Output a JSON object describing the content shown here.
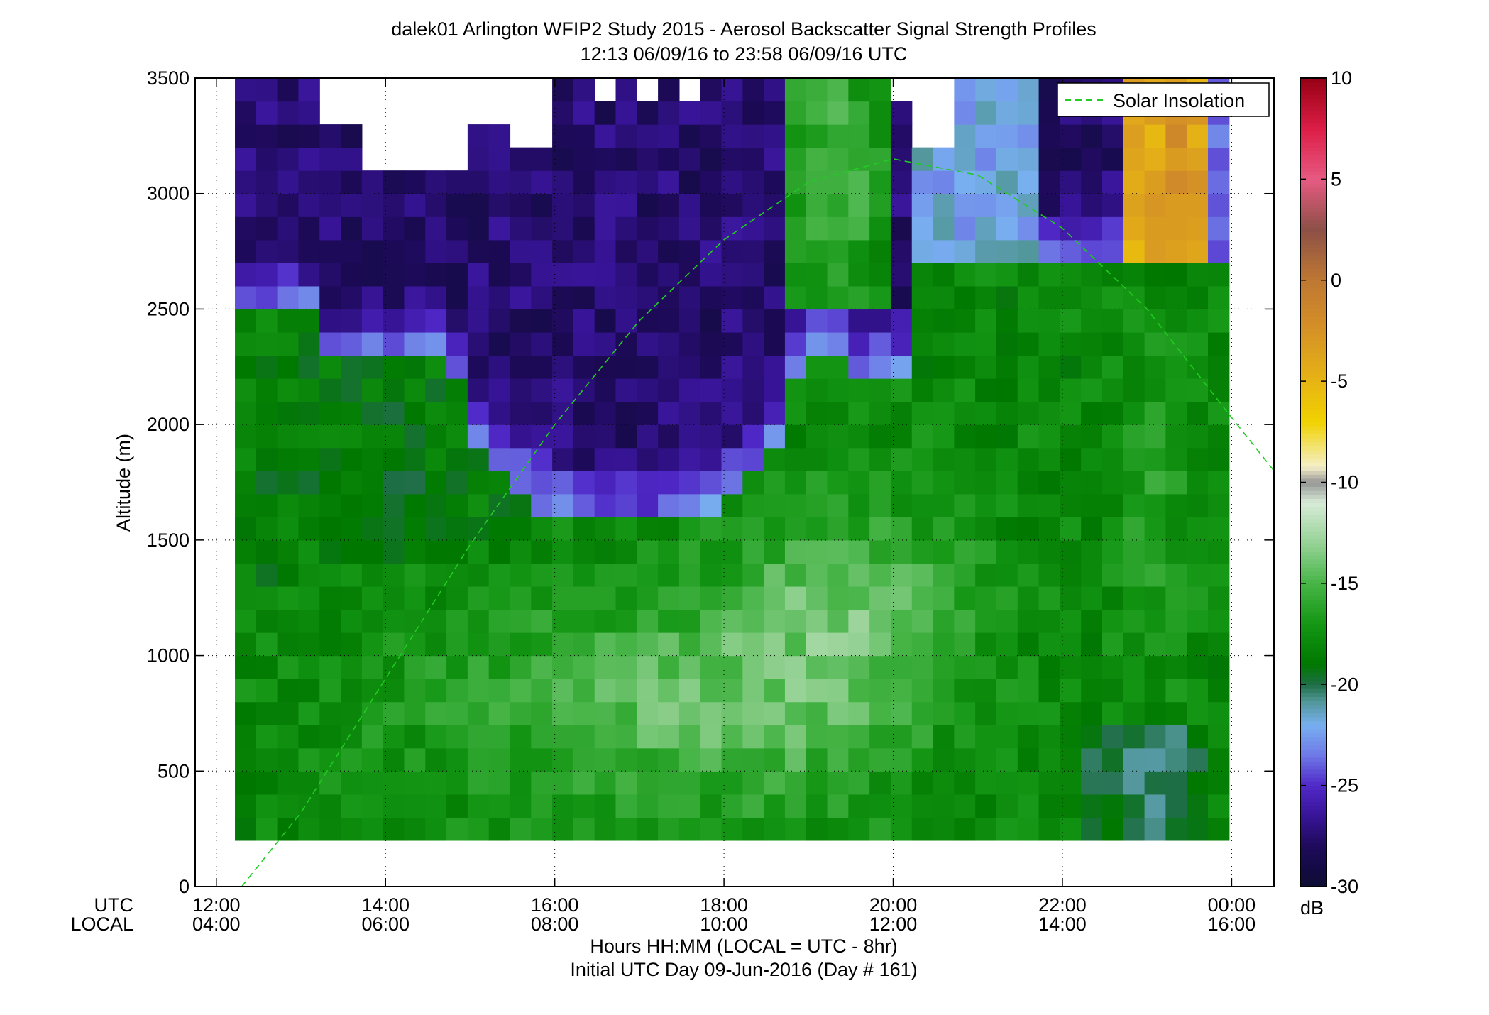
{
  "chart_data": {
    "type": "heatmap",
    "title": "dalek01 Arlington WFIP2 Study 2015 - Aerosol Backscatter Signal Strength Profiles",
    "subtitle": "12:13 06/09/16 to 23:58 06/09/16  UTC",
    "ylabel": "Altitude (m)",
    "xlabel": "Hours HH:MM  (LOCAL = UTC - 8hr)",
    "xlabel2": "Initial UTC Day 09-Jun-2016 (Day # 161)",
    "x_row_labels": [
      "UTC",
      "LOCAL"
    ],
    "xlim": [
      11.75,
      24.5
    ],
    "ylim": [
      0,
      3500
    ],
    "grid": true,
    "xticks": [
      12,
      14,
      16,
      18,
      20,
      22,
      24
    ],
    "xtick_labels_utc": [
      "12:00",
      "14:00",
      "16:00",
      "18:00",
      "20:00",
      "22:00",
      "00:00"
    ],
    "xtick_labels_local": [
      "04:00",
      "06:00",
      "08:00",
      "10:00",
      "12:00",
      "14:00",
      "16:00"
    ],
    "yticks": [
      0,
      500,
      1000,
      1500,
      2000,
      2500,
      3000,
      3500
    ],
    "ytick_labels": [
      "0",
      "500",
      "1000",
      "1500",
      "2000",
      "2500",
      "3000",
      "3500"
    ],
    "colorbar": {
      "label": "dB",
      "range": [
        -30,
        10
      ],
      "ticks": [
        10,
        5,
        0,
        -5,
        -10,
        -15,
        -20,
        -25,
        -30
      ],
      "tick_labels": [
        "10",
        "5",
        "0",
        "-5",
        "-10",
        "-15",
        "-20",
        "-25",
        "-30"
      ]
    },
    "legend": {
      "position": "top-right",
      "entries": [
        "Solar Insolation"
      ]
    },
    "grid_spec": {
      "t_start": 12.22,
      "t_end": 23.97,
      "dt": 0.25,
      "alt_start": 200,
      "alt_end": 3500,
      "dz": 100
    },
    "dB_field_description_note_free": true,
    "solar_insolation": {
      "name": "Solar Insolation",
      "color": "#22cc22",
      "x": [
        12.3,
        13.0,
        14.0,
        15.0,
        16.0,
        17.0,
        18.0,
        19.0,
        20.0,
        21.0,
        22.0,
        23.0,
        24.0,
        24.5
      ],
      "y": [
        0,
        320,
        900,
        1480,
        2000,
        2450,
        2800,
        3050,
        3150,
        3080,
        2850,
        2500,
        2030,
        1800
      ]
    },
    "colors": {
      "background": "#ffffff",
      "grid": "#000000",
      "sun_line": "#22cc22"
    }
  }
}
